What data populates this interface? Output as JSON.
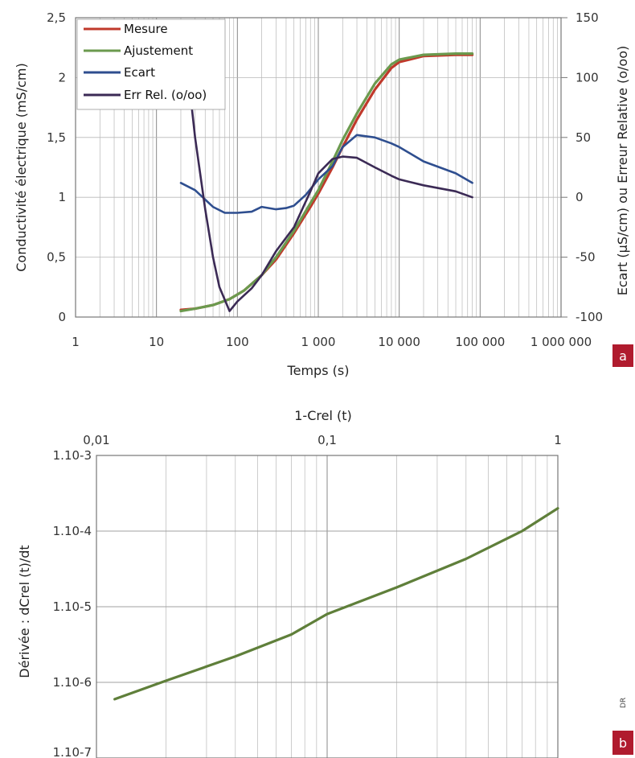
{
  "chart_data": [
    {
      "panel_label": "a",
      "type": "line",
      "x_scale": "log",
      "xlabel": "Temps (s)",
      "ylabel": "Conductivité électrique (mS/cm)",
      "y2label": "Ecart (µS/cm) ou Erreur Relative (o/oo)",
      "xlim": [
        1,
        1000000
      ],
      "ylim": [
        0,
        2.5
      ],
      "y2lim": [
        -100,
        150
      ],
      "x_ticks": [
        1,
        10,
        100,
        1000,
        10000,
        100000,
        1000000
      ],
      "x_tick_labels": [
        "1",
        "10",
        "100",
        "1 000",
        "10 000",
        "100 000",
        "1 000 000"
      ],
      "y_ticks": [
        0,
        0.5,
        1,
        1.5,
        2,
        2.5
      ],
      "y_tick_labels": [
        "0",
        "0,5",
        "1",
        "1,5",
        "2",
        "2,5"
      ],
      "y2_ticks": [
        -100,
        -50,
        0,
        50,
        100,
        150
      ],
      "y2_tick_labels": [
        "-100",
        "-50",
        "0",
        "50",
        "100",
        "150"
      ],
      "grid": true,
      "legend_position": "top-left",
      "series": [
        {
          "name": "Mesure",
          "axis": "left",
          "color": "#c0392b",
          "x": [
            20,
            30,
            50,
            80,
            120,
            200,
            300,
            500,
            800,
            1000,
            1500,
            2000,
            3000,
            5000,
            8000,
            10000,
            20000,
            50000,
            80000
          ],
          "y": [
            0.06,
            0.07,
            0.1,
            0.15,
            0.22,
            0.35,
            0.48,
            0.7,
            0.92,
            1.03,
            1.25,
            1.42,
            1.65,
            1.9,
            2.08,
            2.13,
            2.18,
            2.19,
            2.19
          ]
        },
        {
          "name": "Ajustement",
          "axis": "left",
          "color": "#6b9a4e",
          "x": [
            20,
            30,
            50,
            80,
            120,
            200,
            300,
            500,
            800,
            1000,
            1500,
            2000,
            3000,
            5000,
            8000,
            10000,
            20000,
            50000,
            80000
          ],
          "y": [
            0.05,
            0.07,
            0.1,
            0.15,
            0.22,
            0.35,
            0.5,
            0.72,
            0.95,
            1.06,
            1.3,
            1.48,
            1.7,
            1.95,
            2.11,
            2.15,
            2.19,
            2.2,
            2.2
          ]
        },
        {
          "name": "Ecart",
          "axis": "right",
          "color": "#2e4e8f",
          "x": [
            20,
            30,
            50,
            70,
            100,
            150,
            200,
            300,
            400,
            500,
            700,
            1000,
            1500,
            2000,
            3000,
            5000,
            8000,
            10000,
            20000,
            50000,
            80000
          ],
          "y": [
            12,
            6,
            -8,
            -13,
            -13,
            -12,
            -8,
            -10,
            -9,
            -7,
            2,
            15,
            26,
            42,
            52,
            50,
            45,
            42,
            30,
            20,
            12
          ]
        },
        {
          "name": "Err Rel. (o/oo)",
          "axis": "right",
          "color": "#3b2a55",
          "x": [
            24,
            30,
            40,
            50,
            60,
            80,
            100,
            150,
            200,
            300,
            500,
            800,
            1000,
            1500,
            2000,
            3000,
            5000,
            8000,
            10000,
            20000,
            50000,
            80000
          ],
          "y": [
            110,
            50,
            -10,
            -50,
            -75,
            -95,
            -87,
            -76,
            -65,
            -45,
            -25,
            5,
            20,
            32,
            34,
            33,
            25,
            18,
            15,
            10,
            5,
            0
          ]
        }
      ]
    },
    {
      "panel_label": "b",
      "type": "line",
      "x_scale": "log",
      "y_scale": "log",
      "xlabel": "1-Crel (t)",
      "ylabel": "Dérivée : dCrel (t)/dt",
      "xlim": [
        0.01,
        1
      ],
      "ylim": [
        1e-07,
        0.001
      ],
      "x_ticks": [
        0.01,
        0.1,
        1
      ],
      "x_tick_labels": [
        "0,01",
        "0,1",
        "1"
      ],
      "y_ticks": [
        1e-07,
        1e-06,
        1e-05,
        0.0001,
        0.001
      ],
      "y_tick_labels": [
        "1.10-7",
        "1.10-6",
        "1.10-5",
        "1.10-4",
        "1.10-3"
      ],
      "grid": true,
      "series": [
        {
          "color": "#5f7f3a",
          "x": [
            0.012,
            0.02,
            0.04,
            0.07,
            0.1,
            0.2,
            0.4,
            0.7,
            1.0
          ],
          "y": [
            6e-07,
            1.05e-06,
            2.2e-06,
            4.3e-06,
            8e-06,
            1.8e-05,
            4.3e-05,
            0.0001,
            0.0002
          ]
        }
      ]
    }
  ],
  "credit_text": "DR"
}
